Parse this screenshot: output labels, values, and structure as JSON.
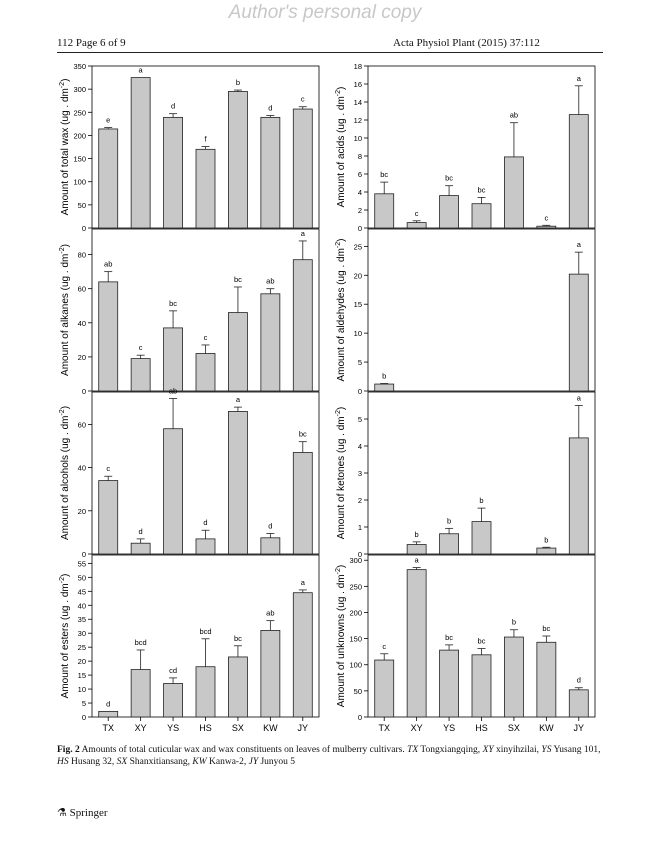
{
  "page": {
    "watermark": "Author's personal copy",
    "header_left": "112 Page 6 of 9",
    "header_right": "Acta Physiol Plant (2015) 37:112",
    "publisher": "Springer"
  },
  "caption": {
    "label": "Fig. 2",
    "text": "Amounts of total cuticular wax and wax constituents on leaves of mulberry cultivars.",
    "legend": [
      {
        "abbr": "TX",
        "name": "Tongxiangqing"
      },
      {
        "abbr": "XY",
        "name": "xinyihzilai"
      },
      {
        "abbr": "YS",
        "name": "Yusang 101"
      },
      {
        "abbr": "HS",
        "name": "Husang 32"
      },
      {
        "abbr": "SX",
        "name": "Shanxitiansang"
      },
      {
        "abbr": "KW",
        "name": "Kanwa-2"
      },
      {
        "abbr": "JY",
        "name": "Junyou 5"
      }
    ]
  },
  "chart_data": [
    {
      "type": "bar",
      "ylabel": "Amount of total wax (ug . dm-2)",
      "ylim": [
        0,
        350
      ],
      "yticks": [
        0,
        50,
        100,
        150,
        200,
        250,
        300,
        350
      ],
      "categories": [
        "TX",
        "XY",
        "YS",
        "HS",
        "SX",
        "KW",
        "JY"
      ],
      "values": [
        214,
        325,
        239,
        170,
        295,
        239,
        257
      ],
      "errors": [
        3,
        0,
        8,
        6,
        3,
        4,
        5
      ],
      "labels": [
        "e",
        "a",
        "d",
        "f",
        "b",
        "d",
        "c"
      ]
    },
    {
      "type": "bar",
      "ylabel": "Amount of acids (ug . dm-2)",
      "ylim": [
        0,
        18
      ],
      "yticks": [
        0,
        2,
        4,
        6,
        8,
        10,
        12,
        14,
        16,
        18
      ],
      "categories": [
        "TX",
        "XY",
        "YS",
        "HS",
        "SX",
        "KW",
        "JY"
      ],
      "values": [
        3.8,
        0.6,
        3.6,
        2.7,
        7.9,
        0.2,
        12.6
      ],
      "errors": [
        1.3,
        0.2,
        1.1,
        0.7,
        3.8,
        0.1,
        3.2
      ],
      "labels": [
        "bc",
        "c",
        "bc",
        "bc",
        "ab",
        "c",
        "a"
      ]
    },
    {
      "type": "bar",
      "ylabel": "Amount of alkanes (ug . dm-2)",
      "ylim": [
        0,
        95
      ],
      "yticks": [
        0,
        20,
        40,
        60,
        80
      ],
      "categories": [
        "TX",
        "XY",
        "YS",
        "HS",
        "SX",
        "KW",
        "JY"
      ],
      "values": [
        64,
        19,
        37,
        22,
        46,
        57,
        77
      ],
      "errors": [
        6,
        2,
        10,
        5,
        15,
        3,
        11
      ],
      "labels": [
        "ab",
        "c",
        "bc",
        "c",
        "bc",
        "ab",
        "a"
      ]
    },
    {
      "type": "bar",
      "ylabel": "Amount of aldehydes (ug . dm-2)",
      "ylim": [
        0,
        28
      ],
      "yticks": [
        0,
        5,
        10,
        15,
        20,
        25
      ],
      "categories": [
        "TX",
        "XY",
        "YS",
        "HS",
        "SX",
        "KW",
        "JY"
      ],
      "values": [
        1.2,
        null,
        null,
        null,
        null,
        null,
        20.2
      ],
      "errors": [
        0.1,
        null,
        null,
        null,
        null,
        null,
        3.8
      ],
      "labels": [
        "b",
        "",
        "",
        "",
        "",
        "",
        "a"
      ]
    },
    {
      "type": "bar",
      "ylabel": "Amount of alcohols (ug . dm-2)",
      "ylim": [
        0,
        75
      ],
      "yticks": [
        0,
        20,
        40,
        60
      ],
      "categories": [
        "TX",
        "XY",
        "YS",
        "HS",
        "SX",
        "KW",
        "JY"
      ],
      "values": [
        34,
        5,
        58,
        7,
        66,
        7.5,
        47
      ],
      "errors": [
        2,
        2,
        14,
        4,
        2,
        2,
        5
      ],
      "labels": [
        "c",
        "d",
        "ab",
        "d",
        "a",
        "d",
        "bc"
      ]
    },
    {
      "type": "bar",
      "ylabel": "Amount of ketones (ug . dm-2)",
      "ylim": [
        0,
        6
      ],
      "yticks": [
        0,
        1,
        2,
        3,
        4,
        5
      ],
      "categories": [
        "TX",
        "XY",
        "YS",
        "HS",
        "SX",
        "KW",
        "JY"
      ],
      "values": [
        null,
        0.35,
        0.75,
        1.2,
        null,
        0.22,
        4.3
      ],
      "errors": [
        null,
        0.1,
        0.2,
        0.5,
        null,
        0.03,
        1.2
      ],
      "labels": [
        "",
        "b",
        "b",
        "b",
        "",
        "b",
        "a"
      ]
    },
    {
      "type": "bar",
      "ylabel": "Amount of esters (ug . dm-2)",
      "ylim": [
        0,
        58
      ],
      "yticks": [
        0,
        5,
        10,
        15,
        20,
        25,
        30,
        35,
        40,
        45,
        50,
        55
      ],
      "categories": [
        "TX",
        "XY",
        "YS",
        "HS",
        "SX",
        "KW",
        "JY"
      ],
      "values": [
        2,
        17,
        12,
        18,
        21.5,
        31,
        44.5
      ],
      "errors": [
        0,
        7,
        2,
        10,
        4,
        3.5,
        1
      ],
      "labels": [
        "d",
        "bcd",
        "cd",
        "bcd",
        "bc",
        "ab",
        "a"
      ]
    },
    {
      "type": "bar",
      "ylabel": "Amount of unknowns (ug . dm-2)",
      "ylim": [
        0,
        310
      ],
      "yticks": [
        0,
        50,
        100,
        150,
        200,
        250,
        300
      ],
      "categories": [
        "TX",
        "XY",
        "YS",
        "HS",
        "SX",
        "KW",
        "JY"
      ],
      "values": [
        109,
        282,
        128,
        119,
        153,
        143,
        52
      ],
      "errors": [
        12,
        4,
        10,
        12,
        14,
        12,
        4
      ],
      "labels": [
        "c",
        "a",
        "bc",
        "bc",
        "b",
        "bc",
        "d"
      ]
    }
  ]
}
